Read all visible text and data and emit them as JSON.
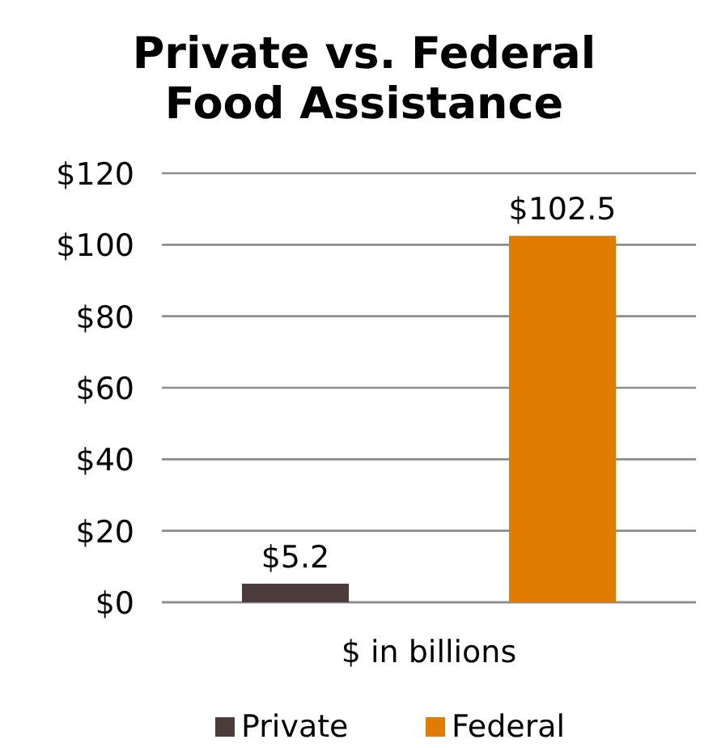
{
  "chart_data": {
    "type": "bar",
    "title": "Private vs. Federal Food Assistance",
    "categories": [
      null
    ],
    "xlabel": "$ in billions",
    "series": [
      {
        "name": "Private",
        "color": "#4b3b3b",
        "values": [
          5.2
        ],
        "value_labels": [
          "$5.2"
        ]
      },
      {
        "name": "Federal",
        "color": "#e07c00",
        "values": [
          102.5
        ],
        "value_labels": [
          "$102.5"
        ]
      }
    ],
    "ylim": [
      0,
      120
    ],
    "yticks": [
      {
        "value": 0,
        "label": "$0"
      },
      {
        "value": 20,
        "label": "$20"
      },
      {
        "value": 40,
        "label": "$40"
      },
      {
        "value": 60,
        "label": "$60"
      },
      {
        "value": 80,
        "label": "$80"
      },
      {
        "value": 100,
        "label": "$100"
      },
      {
        "value": 120,
        "label": "$120"
      }
    ],
    "grid": "y",
    "legend": "bottom"
  }
}
